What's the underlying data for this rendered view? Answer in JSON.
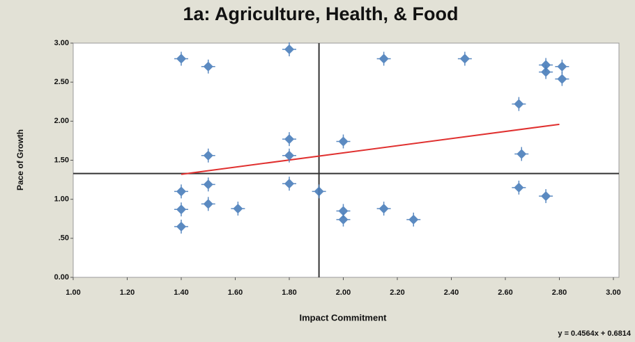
{
  "chart_data": {
    "type": "scatter",
    "title": "1a: Agriculture, Health, & Food",
    "x_label": "Impact Commitment",
    "y_label": "Pace of Growth",
    "equation": "y = 0.4564x + 0.6814",
    "series": [
      {
        "name": "Agriculture, Health, & Food",
        "color": "#4a7ebb",
        "x": [
          1.4,
          1.5,
          1.8,
          2.15,
          2.45,
          2.75,
          2.75,
          2.81,
          2.81,
          2.65,
          1.8,
          1.8,
          1.5,
          2.0,
          2.66,
          1.4,
          1.5,
          1.8,
          1.91,
          1.4,
          1.5,
          1.61,
          1.4,
          2.0,
          2.0,
          2.15,
          2.26,
          2.65,
          2.75
        ],
        "values": [
          2.8,
          2.7,
          2.92,
          2.8,
          2.8,
          2.72,
          2.63,
          2.7,
          2.54,
          2.22,
          1.77,
          1.56,
          1.56,
          1.74,
          1.58,
          1.1,
          1.19,
          1.2,
          1.1,
          0.87,
          0.94,
          0.88,
          0.65,
          0.85,
          0.74,
          0.88,
          0.74,
          1.15,
          1.04
        ]
      }
    ],
    "trendline": {
      "color": "#e0302f",
      "x": [
        1.4,
        2.8
      ],
      "values": [
        1.32,
        1.96
      ]
    },
    "reference_x": 1.91,
    "reference_y": 1.33,
    "xlim": [
      1.0,
      3.0
    ],
    "xticks": [
      {
        "value": 1.0,
        "label": "1.00"
      },
      {
        "value": 1.2,
        "label": "1.20"
      },
      {
        "value": 1.4,
        "label": "1.40"
      },
      {
        "value": 1.6,
        "label": "1.60"
      },
      {
        "value": 1.8,
        "label": "1.80"
      },
      {
        "value": 2.0,
        "label": "2.00"
      },
      {
        "value": 2.2,
        "label": "2.20"
      },
      {
        "value": 2.4,
        "label": "2.40"
      },
      {
        "value": 2.6,
        "label": "2.60"
      },
      {
        "value": 2.8,
        "label": "2.80"
      },
      {
        "value": 3.0,
        "label": "3.00"
      }
    ],
    "ylim": [
      0.0,
      3.0
    ],
    "yticks": [
      {
        "value": 0,
        "label": "0.00"
      },
      {
        "value": 0.5,
        "label": ".50"
      },
      {
        "value": 1.0,
        "label": "1.00"
      },
      {
        "value": 1.5,
        "label": "1.50"
      },
      {
        "value": 2.0,
        "label": "2.00"
      },
      {
        "value": 2.5,
        "label": "2.50"
      },
      {
        "value": 3.0,
        "label": "3.00"
      }
    ]
  }
}
